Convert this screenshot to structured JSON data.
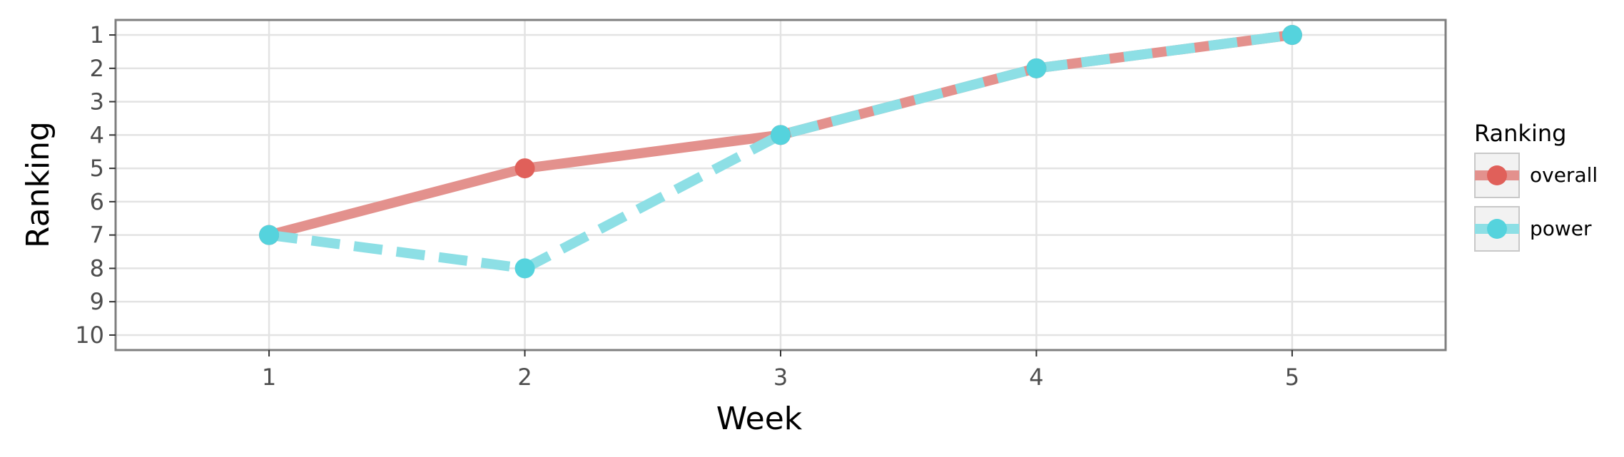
{
  "chart_data": {
    "type": "line",
    "title": "",
    "xlabel": "Week",
    "ylabel": "Ranking",
    "x": [
      1,
      2,
      3,
      4,
      5
    ],
    "xticks": [
      "1",
      "2",
      "3",
      "4",
      "5"
    ],
    "yticks": [
      "1",
      "2",
      "3",
      "4",
      "5",
      "6",
      "7",
      "8",
      "9",
      "10"
    ],
    "xlim": [
      0.4,
      5.6
    ],
    "ylim": [
      10.45,
      0.55
    ],
    "y_axis_reversed": true,
    "grid": true,
    "legend": {
      "title": "Ranking",
      "placement": "right"
    },
    "series": [
      {
        "name": "overall",
        "values": [
          7,
          5,
          4,
          2,
          1
        ],
        "color": "#E0605A",
        "line_color": "#E3918D",
        "dash": "solid"
      },
      {
        "name": "power",
        "values": [
          7,
          8,
          4,
          2,
          1
        ],
        "color": "#55D3DD",
        "line_color": "#8DDFE5",
        "dash": "dashed"
      }
    ]
  }
}
